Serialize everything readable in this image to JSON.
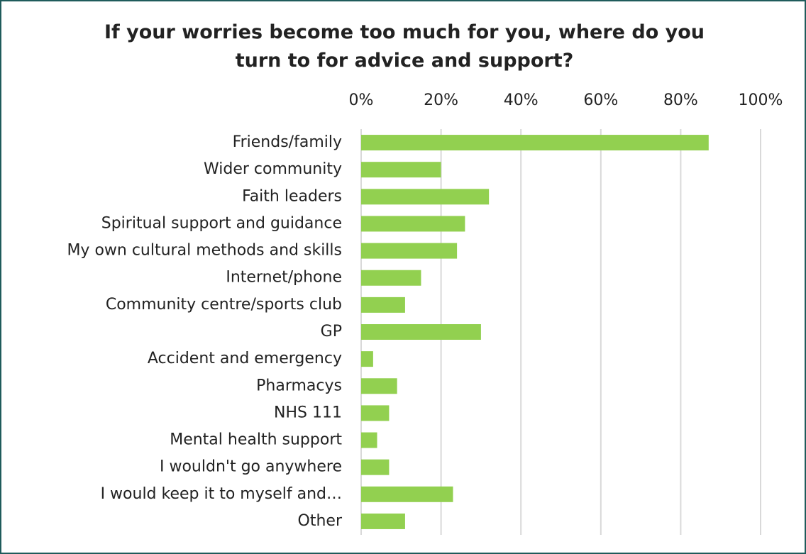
{
  "chart_data": {
    "type": "barh",
    "title": "If your worries become too much for you, where do you turn to for advice and support?",
    "categories": [
      "Friends/family",
      "Wider community",
      "Faith leaders",
      "Spiritual support and guidance",
      "My own cultural methods and skills",
      "Internet/phone",
      "Community centre/sports club",
      "GP",
      "Accident and emergency",
      "Pharmacys",
      "NHS 111",
      "Mental health support",
      "I wouldn't go anywhere",
      "I would keep it to myself and…",
      "Other"
    ],
    "values": [
      87,
      20,
      32,
      26,
      24,
      15,
      11,
      30,
      3,
      9,
      7,
      4,
      7,
      23,
      11
    ],
    "color": "#92d050",
    "xlim": [
      0,
      100
    ],
    "xticks": [
      {
        "value": 0,
        "label": "0%"
      },
      {
        "value": 20,
        "label": "20%"
      },
      {
        "value": 40,
        "label": "40%"
      },
      {
        "value": 60,
        "label": "60%"
      },
      {
        "value": 80,
        "label": "80%"
      },
      {
        "value": 100,
        "label": "100%"
      }
    ],
    "grid": true
  }
}
